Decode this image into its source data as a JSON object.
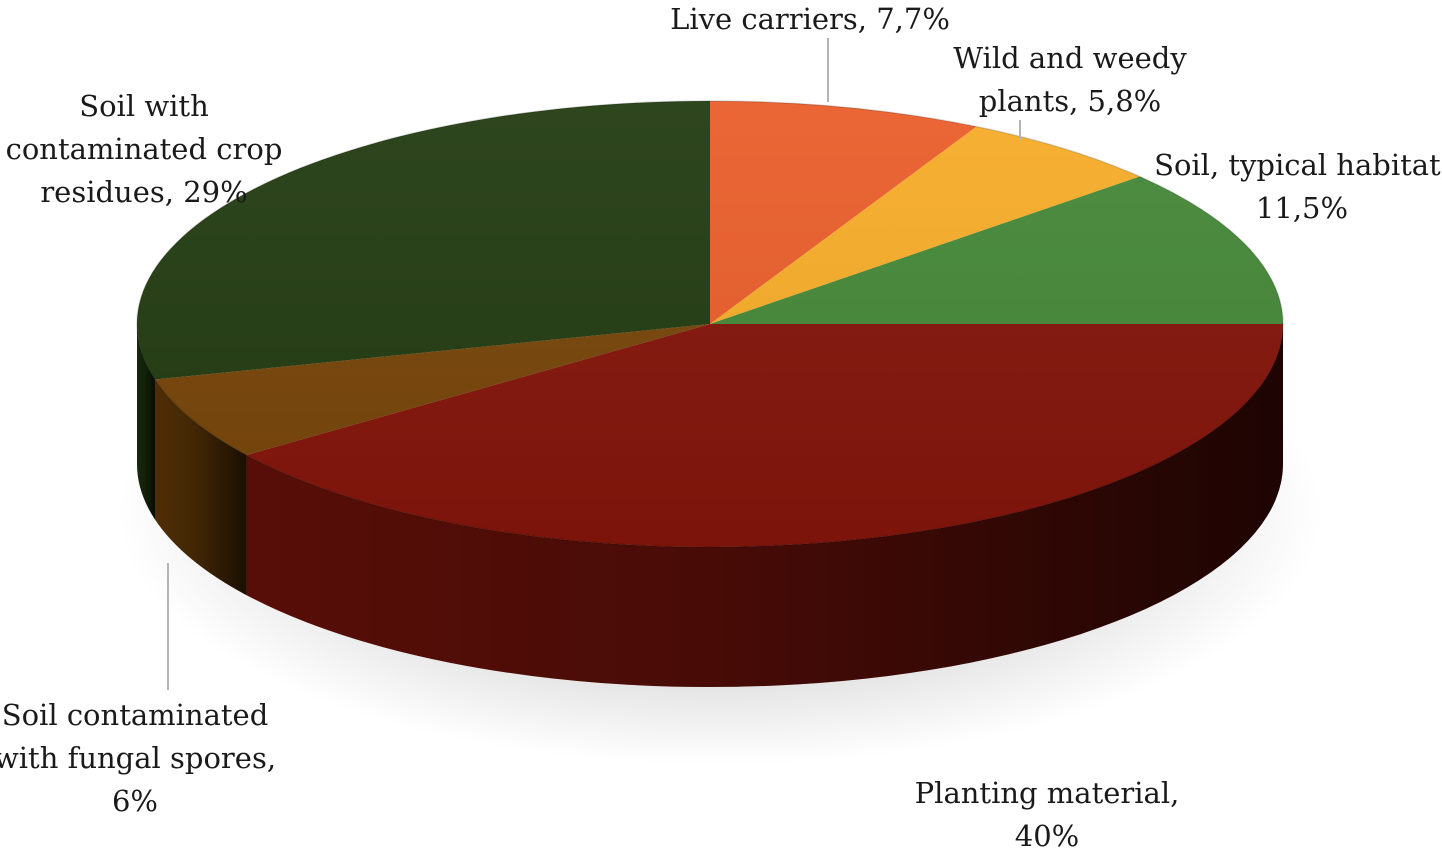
{
  "chart_data": {
    "type": "pie",
    "style": "3d",
    "legend": "none",
    "slices": [
      {
        "label_lines": [
          "Live carriers, 7,7%"
        ],
        "value": 7.7,
        "color": "#e95e2b"
      },
      {
        "label_lines": [
          "Wild and weedy",
          "plants, 5,8%"
        ],
        "value": 5.8,
        "color": "#f6ac29"
      },
      {
        "label_lines": [
          "Soil, typical habitat,",
          "11,5%"
        ],
        "value": 11.5,
        "color": "#458838"
      },
      {
        "label_lines": [
          "Planting material,",
          "40%"
        ],
        "value": 40,
        "color": "#84150b"
      },
      {
        "label_lines": [
          "Soil contaminated",
          "with fungal spores,",
          "6%"
        ],
        "value": 6,
        "color": "#774509"
      },
      {
        "label_lines": [
          "Soil with",
          "contaminated crop",
          "residues, 29%"
        ],
        "value": 29,
        "color": "#233c12"
      }
    ]
  }
}
